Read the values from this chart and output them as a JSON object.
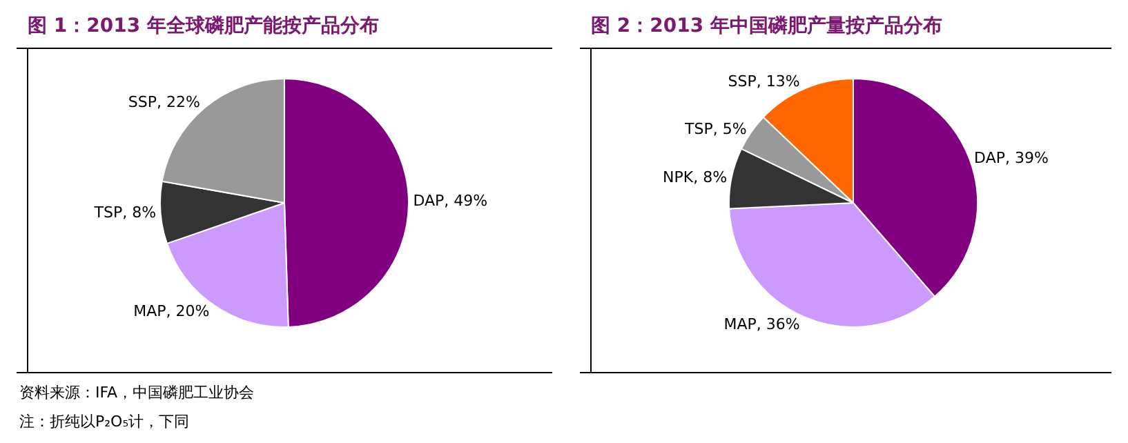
{
  "chart_data": [
    {
      "type": "pie",
      "title": "图 1：2013 年全球磷肥产能按产品分布",
      "categories": [
        "DAP",
        "MAP",
        "TSP",
        "SSP"
      ],
      "values": [
        49,
        20,
        8,
        22
      ],
      "colors": [
        "#800080",
        "#cc99ff",
        "#333333",
        "#999999"
      ],
      "value_labels": [
        "49%",
        "20%",
        "8%",
        "22%"
      ],
      "annotations": [
        "资料来源：IFA，中国磷肥工业协会",
        "注：折纯以P₂O₅计，下同"
      ]
    },
    {
      "type": "pie",
      "title": "图 2：2013 年中国磷肥产量按产品分布",
      "categories": [
        "DAP",
        "MAP",
        "NPK",
        "TSP",
        "SSP"
      ],
      "values": [
        39,
        36,
        8,
        5,
        13
      ],
      "colors": [
        "#800080",
        "#cc99ff",
        "#333333",
        "#999999",
        "#ff6600"
      ],
      "value_labels": [
        "39%",
        "36%",
        "8%",
        "5%",
        "13%"
      ]
    }
  ]
}
